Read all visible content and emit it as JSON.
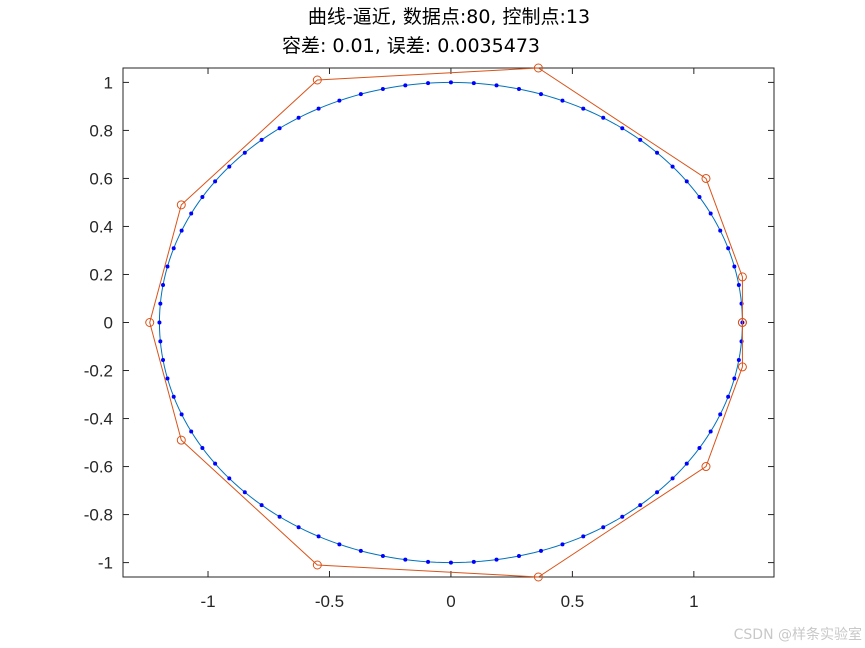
{
  "title": {
    "line1": "曲线-逼近, 数据点:80, 控制点:13",
    "line2": "容差: 0.01, 误差: 0.0035473"
  },
  "watermark": "CSDN @样条实验室",
  "chart_data": {
    "type": "line",
    "xlim": [
      -1.35,
      1.33
    ],
    "ylim": [
      -1.06,
      1.06
    ],
    "x_ticks": [
      -1,
      -0.5,
      0,
      0.5,
      1
    ],
    "x_tick_labels": [
      "-1",
      "-0.5",
      "0",
      "0.5",
      "1"
    ],
    "y_ticks": [
      1,
      0.8,
      0.6,
      0.4,
      0.2,
      0,
      -0.2,
      -0.4,
      -0.6,
      -0.8,
      -1
    ],
    "y_tick_labels": [
      "1",
      "0.8",
      "0.6",
      "0.4",
      "0.2",
      "0",
      "-0.2",
      "-0.4",
      "-0.6",
      "-0.8",
      "-1"
    ],
    "grid": false,
    "box": true,
    "series": [
      {
        "kind": "fitted-curve",
        "color": "#0072bd",
        "shape": "ellipse",
        "semi_axis_x": 1.2,
        "semi_axis_y": 1.0
      },
      {
        "kind": "data-points",
        "color": "#0000ff",
        "count": 80,
        "shape": "ellipse",
        "semi_axis_x": 1.2,
        "semi_axis_y": 1.0
      },
      {
        "kind": "control-polygon",
        "color": "#d95319",
        "marker": "circle",
        "points": [
          [
            1.2,
            0.0
          ],
          [
            1.2,
            0.19
          ],
          [
            1.05,
            0.6
          ],
          [
            0.36,
            1.06
          ],
          [
            -0.55,
            1.01
          ],
          [
            -1.11,
            0.49
          ],
          [
            -1.24,
            0.0
          ],
          [
            -1.11,
            -0.49
          ],
          [
            -0.55,
            -1.01
          ],
          [
            0.36,
            -1.06
          ],
          [
            1.05,
            -0.6
          ],
          [
            1.2,
            -0.185
          ],
          [
            1.2,
            0.0
          ]
        ]
      }
    ]
  }
}
